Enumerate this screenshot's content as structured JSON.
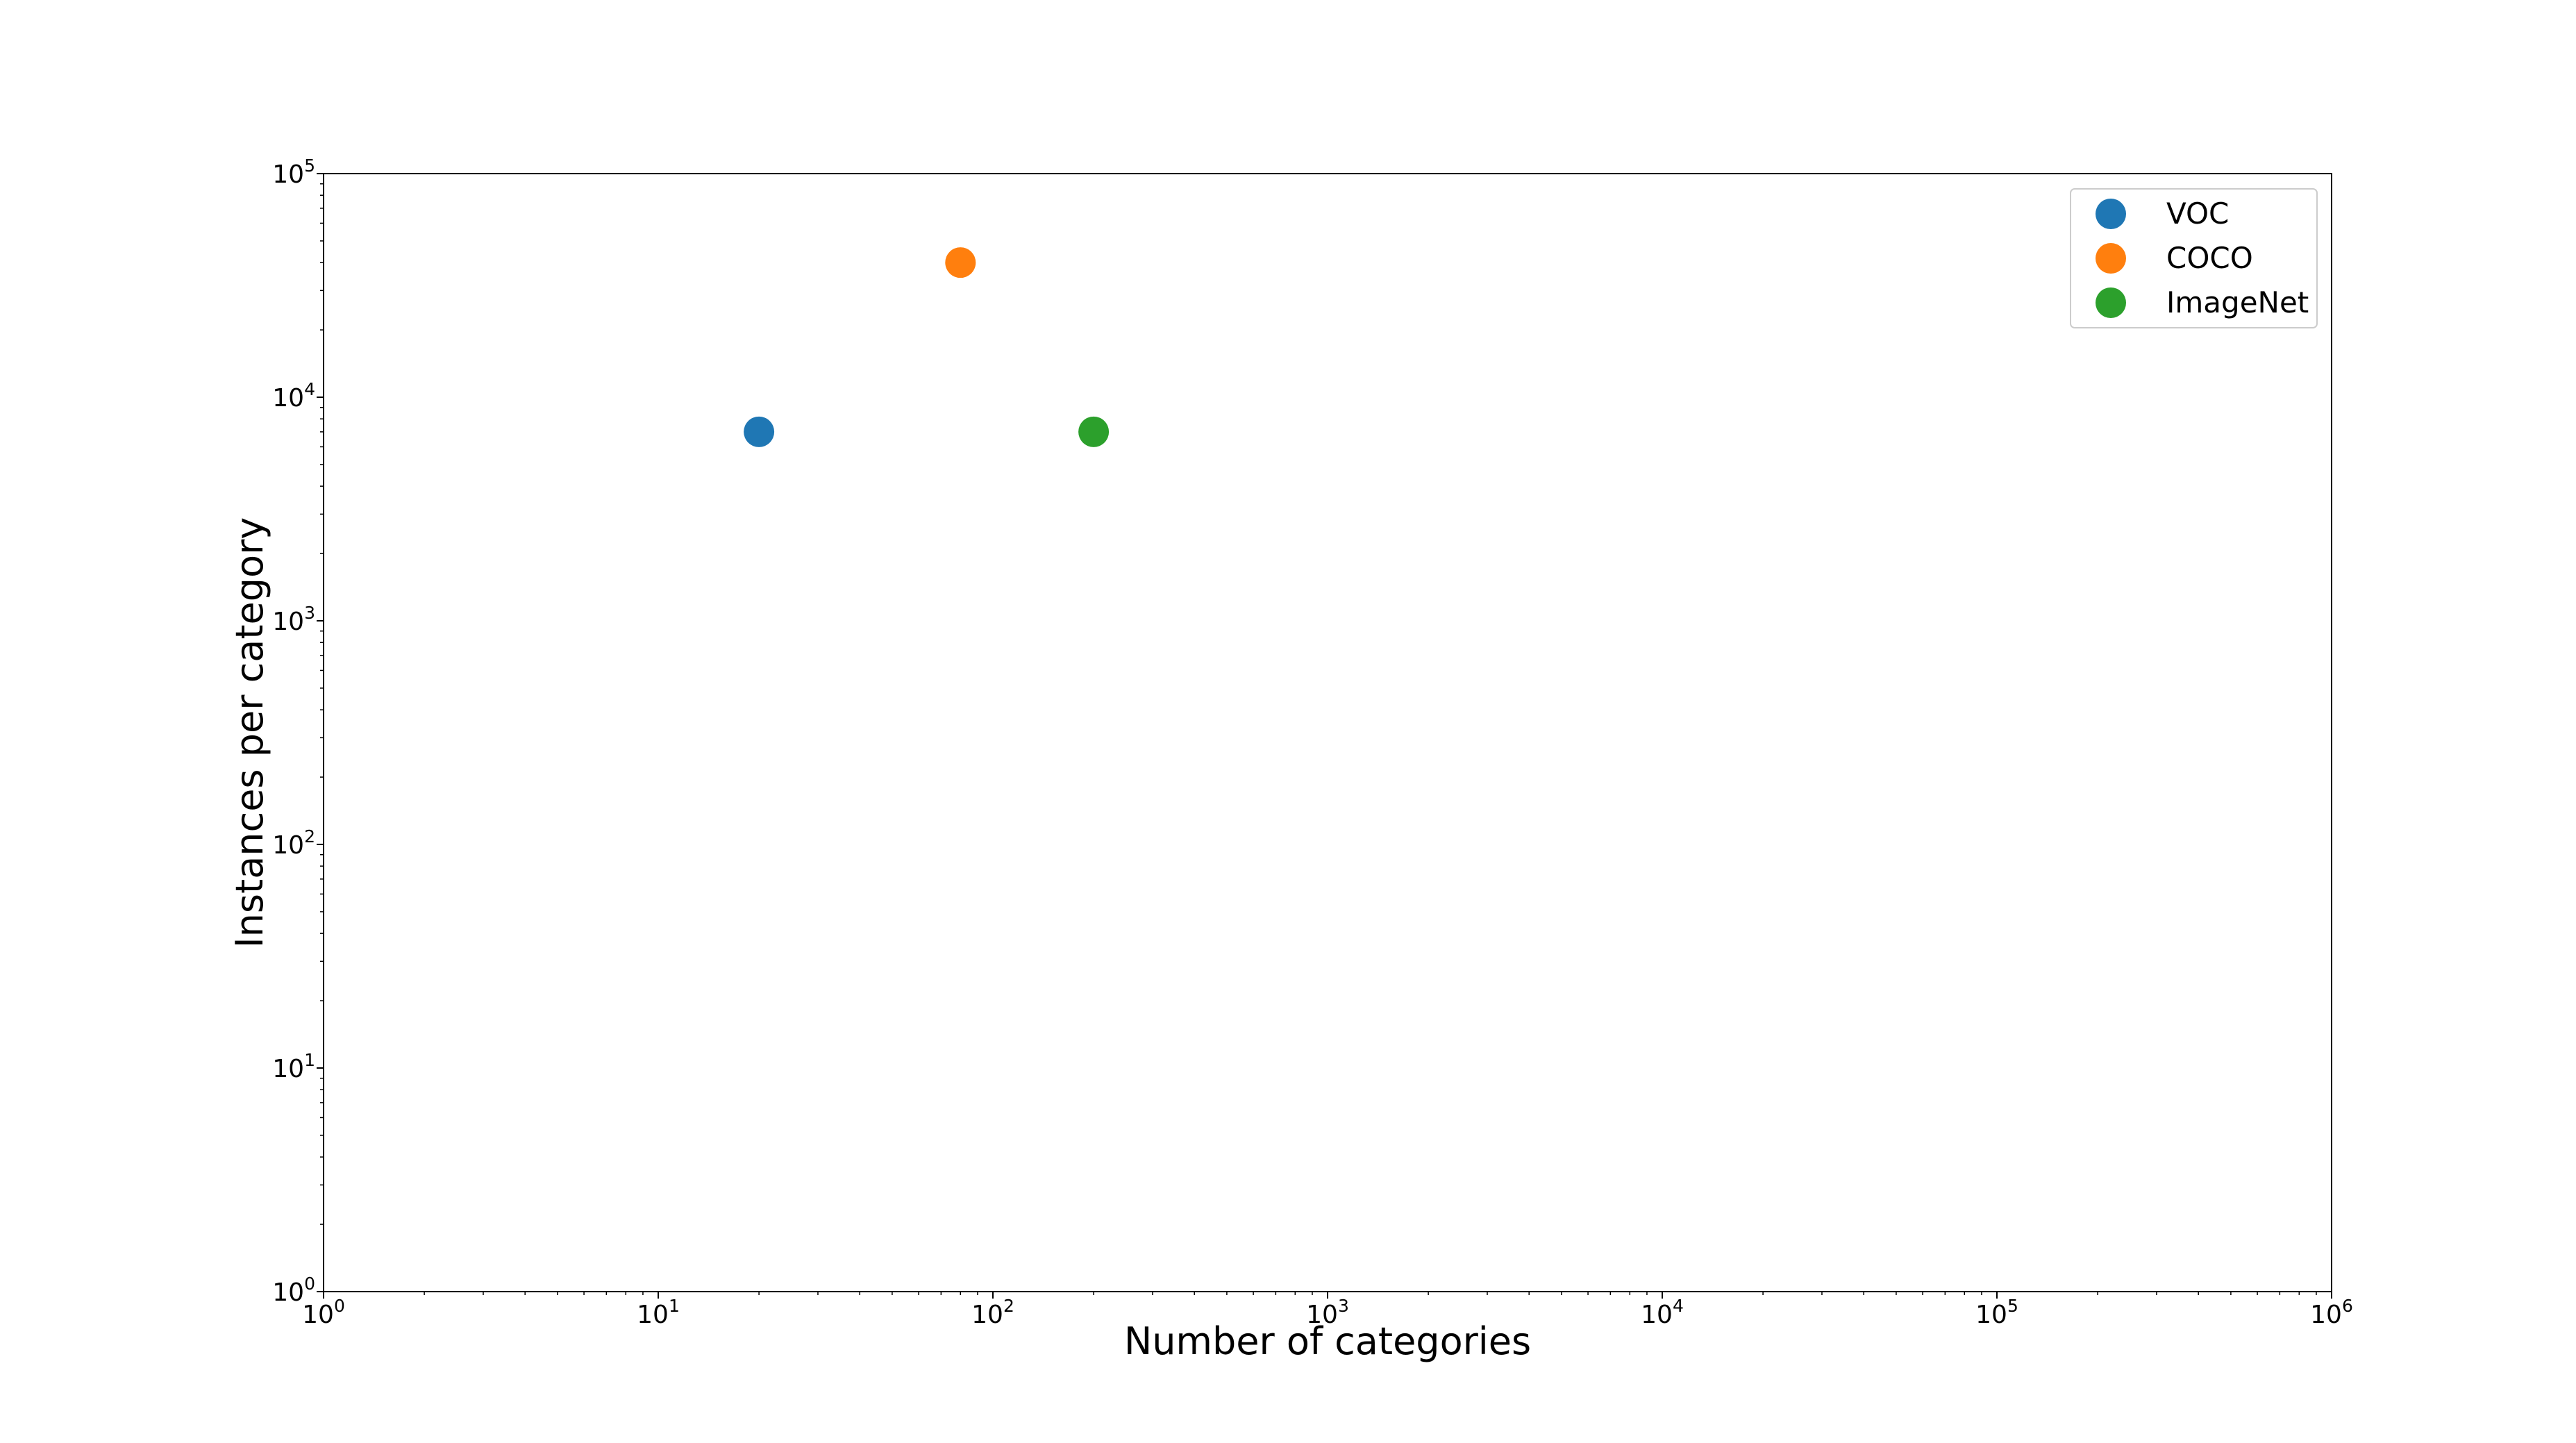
{
  "chart_data": {
    "type": "scatter",
    "title": "",
    "xlabel": "Number of categories",
    "ylabel": "Instances per category",
    "xscale": "log",
    "yscale": "log",
    "xlim": [
      1,
      1000000
    ],
    "ylim": [
      1,
      100000
    ],
    "grid": false,
    "legend_position": "top-right",
    "x_ticks": [
      {
        "base": "10",
        "exp": "0",
        "value": 1
      },
      {
        "base": "10",
        "exp": "1",
        "value": 10
      },
      {
        "base": "10",
        "exp": "2",
        "value": 100
      },
      {
        "base": "10",
        "exp": "3",
        "value": 1000
      },
      {
        "base": "10",
        "exp": "4",
        "value": 10000
      },
      {
        "base": "10",
        "exp": "5",
        "value": 100000
      },
      {
        "base": "10",
        "exp": "6",
        "value": 1000000
      }
    ],
    "y_ticks": [
      {
        "base": "10",
        "exp": "0",
        "value": 1
      },
      {
        "base": "10",
        "exp": "1",
        "value": 10
      },
      {
        "base": "10",
        "exp": "2",
        "value": 100
      },
      {
        "base": "10",
        "exp": "3",
        "value": 1000
      },
      {
        "base": "10",
        "exp": "4",
        "value": 10000
      },
      {
        "base": "10",
        "exp": "5",
        "value": 100000
      }
    ],
    "series": [
      {
        "name": "VOC",
        "color": "#1f77b4",
        "points": [
          {
            "x": 20,
            "y": 7000
          }
        ]
      },
      {
        "name": "COCO",
        "color": "#ff7f0e",
        "points": [
          {
            "x": 80,
            "y": 40000
          }
        ]
      },
      {
        "name": "ImageNet",
        "color": "#2ca02c",
        "points": [
          {
            "x": 200,
            "y": 7000
          }
        ]
      }
    ]
  }
}
